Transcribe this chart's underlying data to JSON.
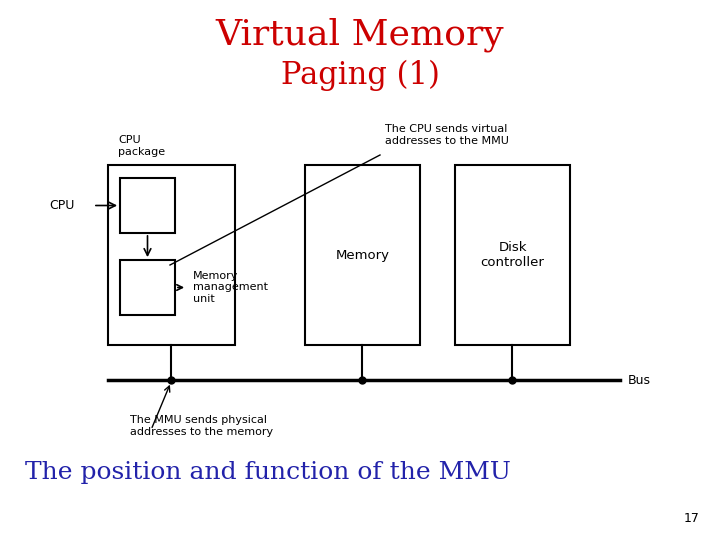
{
  "title_line1": "Virtual Memory",
  "title_line2": "Paging (1)",
  "title_color": "#cc0000",
  "subtitle": "The position and function of the MMU",
  "subtitle_color": "#2222aa",
  "page_number": "17",
  "bg_color": "#ffffff",
  "diagram": {
    "cpu_label": "CPU",
    "cpu_package_label": "CPU\npackage",
    "mmu_label": "Memory\nmanagement\nunit",
    "memory_label": "Memory",
    "disk_label": "Disk\ncontroller",
    "bus_label": "Bus",
    "annotation_top": "The CPU sends virtual\naddresses to the MMU",
    "annotation_bottom": "The MMU sends physical\naddresses to the memory"
  }
}
